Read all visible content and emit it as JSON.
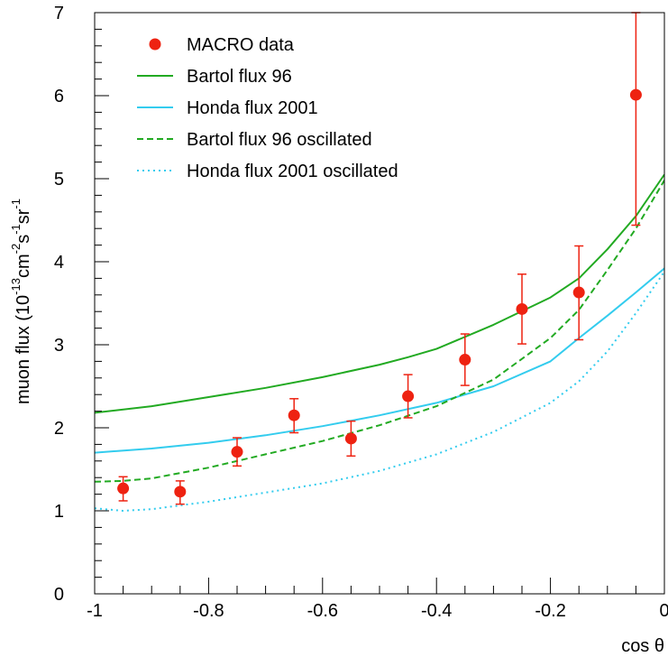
{
  "chart_data": {
    "type": "line",
    "xlabel": "cos θ",
    "ylabel": {
      "prefix": "muon flux (10",
      "exp1": "-13",
      "u1": "cm",
      "exp2": "-2",
      "u2": "s",
      "exp3": "-1",
      "u3": "sr",
      "exp4": "-1"
    },
    "xlim": [
      -1,
      0
    ],
    "ylim": [
      0,
      7
    ],
    "xticks": [
      -1,
      -0.8,
      -0.6,
      -0.4,
      -0.2,
      0
    ],
    "xtick_labels": [
      "-1",
      "-0.8",
      "-0.6",
      "-0.4",
      "-0.2",
      "0"
    ],
    "yticks": [
      0,
      1,
      2,
      3,
      4,
      5,
      6,
      7
    ],
    "ytick_labels": [
      "0",
      "1",
      "2",
      "3",
      "4",
      "5",
      "6",
      "7"
    ],
    "legend_position": "top-left",
    "series": [
      {
        "name": "MACRO data",
        "kind": "points",
        "color": "#ee2211",
        "x": [
          -0.95,
          -0.85,
          -0.75,
          -0.65,
          -0.55,
          -0.45,
          -0.35,
          -0.25,
          -0.15,
          -0.05
        ],
        "y": [
          1.27,
          1.23,
          1.71,
          2.15,
          1.87,
          2.38,
          2.82,
          3.43,
          3.63,
          6.01
        ],
        "err_low": [
          0.15,
          0.15,
          0.17,
          0.21,
          0.21,
          0.26,
          0.31,
          0.42,
          0.57,
          1.57
        ],
        "err_high": [
          0.14,
          0.13,
          0.17,
          0.2,
          0.21,
          0.26,
          0.31,
          0.42,
          0.56,
          1.0
        ]
      },
      {
        "name": "Bartol flux 96",
        "kind": "line",
        "style": "solid",
        "color": "#22aa22",
        "x": [
          -1,
          -0.9,
          -0.8,
          -0.7,
          -0.6,
          -0.5,
          -0.45,
          -0.4,
          -0.3,
          -0.2,
          -0.15,
          -0.1,
          -0.05,
          0
        ],
        "y": [
          2.18,
          2.26,
          2.37,
          2.48,
          2.61,
          2.76,
          2.85,
          2.95,
          3.24,
          3.57,
          3.8,
          4.15,
          4.55,
          5.05
        ]
      },
      {
        "name": "Honda flux 2001",
        "kind": "line",
        "style": "solid",
        "color": "#33ccee",
        "x": [
          -1,
          -0.9,
          -0.8,
          -0.7,
          -0.6,
          -0.5,
          -0.4,
          -0.3,
          -0.2,
          -0.15,
          -0.1,
          -0.05,
          0
        ],
        "y": [
          1.7,
          1.75,
          1.82,
          1.91,
          2.02,
          2.15,
          2.3,
          2.5,
          2.8,
          3.08,
          3.35,
          3.63,
          3.92
        ]
      },
      {
        "name": "Bartol flux 96 oscillated",
        "kind": "line",
        "style": "dashed",
        "color": "#22aa22",
        "x": [
          -1,
          -0.95,
          -0.9,
          -0.8,
          -0.7,
          -0.6,
          -0.5,
          -0.4,
          -0.3,
          -0.2,
          -0.15,
          -0.1,
          -0.05,
          0
        ],
        "y": [
          1.35,
          1.36,
          1.39,
          1.52,
          1.68,
          1.84,
          2.03,
          2.26,
          2.58,
          3.08,
          3.42,
          3.9,
          4.4,
          4.98
        ]
      },
      {
        "name": "Honda flux 2001 oscillated",
        "kind": "line",
        "style": "dotted",
        "color": "#33ccee",
        "x": [
          -1,
          -0.95,
          -0.9,
          -0.8,
          -0.7,
          -0.6,
          -0.5,
          -0.4,
          -0.3,
          -0.2,
          -0.15,
          -0.1,
          -0.05,
          0
        ],
        "y": [
          1.03,
          1.0,
          1.02,
          1.11,
          1.22,
          1.33,
          1.48,
          1.68,
          1.95,
          2.3,
          2.56,
          2.92,
          3.38,
          3.88
        ]
      }
    ]
  }
}
